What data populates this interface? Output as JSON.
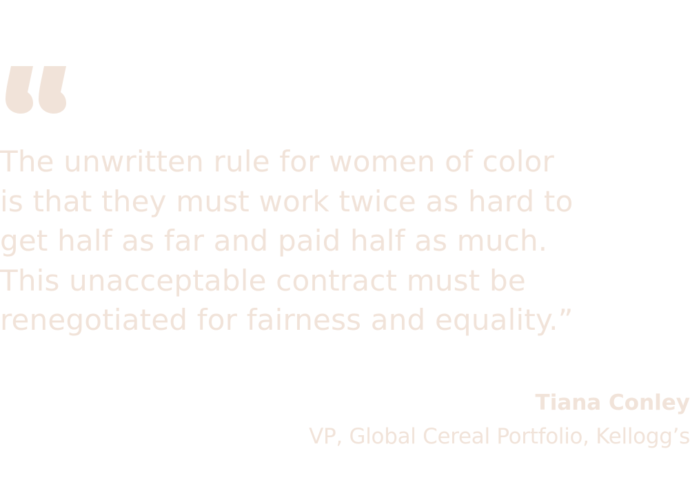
{
  "colors": {
    "text": "#f1e3d9",
    "quote_mark": "#f1e3d9",
    "background": "#ffffff"
  },
  "quote": {
    "icon": "open-quote-icon",
    "lines": [
      "The unwritten rule for women of color",
      "is that they must work twice as hard to",
      "get half as far and paid half as much.",
      "This unacceptable contract must be",
      "renegotiated for fairness and equality.”"
    ]
  },
  "attribution": {
    "name": "Tiana Conley",
    "title": "VP, Global Cereal Portfolio, Kellogg’s"
  }
}
